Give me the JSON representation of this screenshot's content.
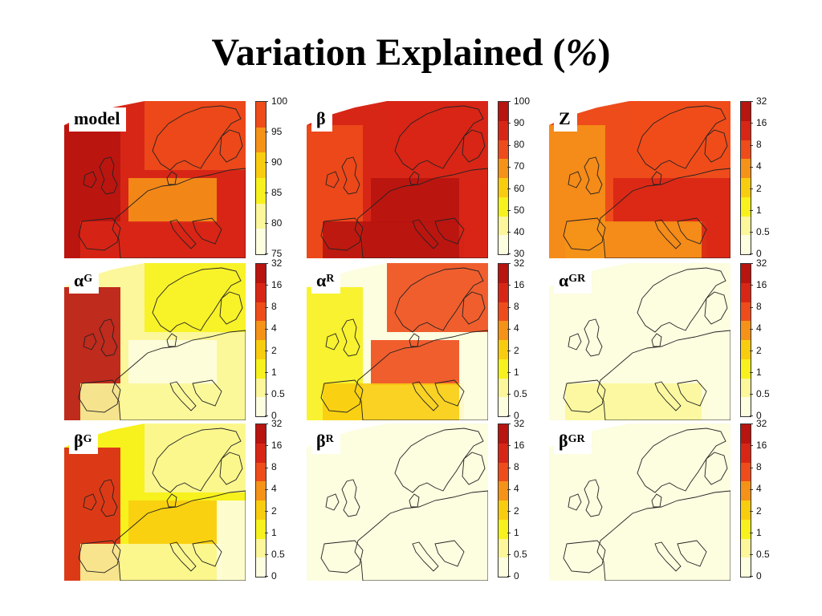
{
  "title": {
    "text": "Variation Explained (",
    "pct": "%",
    "close": ")"
  },
  "colors": {
    "scale": [
      "#fdfde0",
      "#fbf79a",
      "#f7f11d",
      "#f9cd0f",
      "#f59218",
      "#ee4c1b",
      "#d82616",
      "#b81410"
    ],
    "coastline": "#222222"
  },
  "panels": [
    {
      "id": "model",
      "label": "model",
      "sup": "",
      "ticks": [
        "100",
        "95",
        "90",
        "85",
        "80",
        "75"
      ],
      "levels": {
        "base": 6,
        "west": 7,
        "north": 5,
        "center": 4,
        "south": 6,
        "east": 6
      }
    },
    {
      "id": "beta",
      "label": "β",
      "sup": "",
      "ticks": [
        "100",
        "90",
        "80",
        "70",
        "60",
        "50",
        "40",
        "30"
      ],
      "levels": {
        "base": 6,
        "west": 5,
        "north": 6,
        "center": 7,
        "south": 7,
        "east": 6
      }
    },
    {
      "id": "Z",
      "label": "Z",
      "sup": "",
      "ticks": [
        "32",
        "16",
        "8",
        "4",
        "2",
        "1",
        "0.5",
        "0"
      ],
      "levels": {
        "base": 5,
        "west": 4,
        "north": 5,
        "center": 6,
        "south": 4,
        "east": 6
      }
    },
    {
      "id": "alpha-G",
      "label": "α",
      "sup": "G",
      "ticks": [
        "32",
        "16",
        "8",
        "4",
        "2",
        "1",
        "0.5",
        "0"
      ],
      "levels": {
        "base": 1,
        "west": 7,
        "north": 2,
        "center": 0,
        "south": 1,
        "east": 1
      }
    },
    {
      "id": "alpha-R",
      "label": "α",
      "sup": "R",
      "ticks": [
        "32",
        "16",
        "8",
        "4",
        "2",
        "1",
        "0.5",
        "0"
      ],
      "levels": {
        "base": 0,
        "west": 2,
        "north": 5,
        "center": 5,
        "south": 3,
        "east": 0
      }
    },
    {
      "id": "alpha-GR",
      "label": "α",
      "sup": "GR",
      "ticks": [
        "32",
        "16",
        "8",
        "4",
        "2",
        "1",
        "0.5",
        "0"
      ],
      "levels": {
        "base": 0,
        "west": 0,
        "north": 0,
        "center": 0,
        "south": 1,
        "east": 0
      }
    },
    {
      "id": "beta-G",
      "label": "β",
      "sup": "G",
      "ticks": [
        "32",
        "16",
        "8",
        "4",
        "2",
        "1",
        "0.5",
        "0"
      ],
      "levels": {
        "base": 2,
        "west": 6,
        "north": 1,
        "center": 3,
        "south": 1,
        "east": 0
      }
    },
    {
      "id": "beta-R",
      "label": "β",
      "sup": "R",
      "ticks": [
        "32",
        "16",
        "8",
        "4",
        "2",
        "1",
        "0.5",
        "0"
      ],
      "levels": {
        "base": 0,
        "west": 0,
        "north": 0,
        "center": 0,
        "south": 0,
        "east": 0
      }
    },
    {
      "id": "beta-GR",
      "label": "β",
      "sup": "GR",
      "ticks": [
        "32",
        "16",
        "8",
        "4",
        "2",
        "1",
        "0.5",
        "0"
      ],
      "levels": {
        "base": 0,
        "west": 0,
        "north": 0,
        "center": 0,
        "south": 0,
        "east": 0
      }
    }
  ]
}
